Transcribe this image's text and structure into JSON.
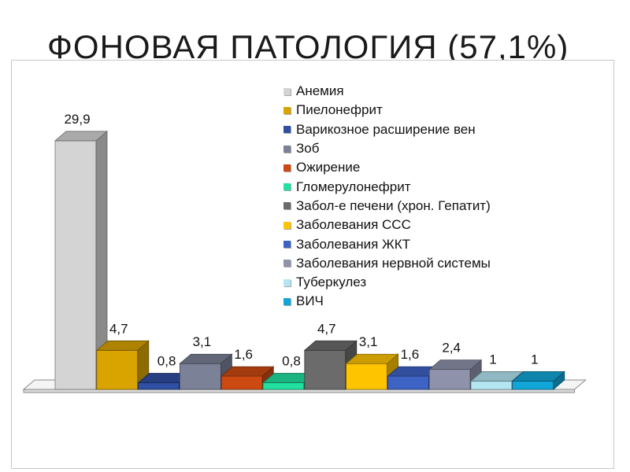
{
  "slide": {
    "title": "ФОНОВАЯ ПАТОЛОГИЯ (57,1%)"
  },
  "chart_data": {
    "type": "bar",
    "title": "",
    "xlabel": "",
    "ylabel": "",
    "ylim": [
      0,
      30
    ],
    "grid": false,
    "legend_position": "top-right",
    "series": [
      {
        "name": "Анемия",
        "value": 29.9,
        "label": "29,9",
        "color": "#d4d4d4"
      },
      {
        "name": "Пиелонефрит",
        "value": 4.7,
        "label": "4,7",
        "color": "#d9a400"
      },
      {
        "name": "Варикозное расширение вен",
        "value": 0.8,
        "label": "0,8",
        "color": "#2e4fa3"
      },
      {
        "name": "Зоб",
        "value": 3.1,
        "label": "3,1",
        "color": "#7b8196"
      },
      {
        "name": "Ожирение",
        "value": 1.6,
        "label": "1,6",
        "color": "#cc4a12"
      },
      {
        "name": "Гломерулонефрит",
        "value": 0.8,
        "label": "0,8",
        "color": "#22e0a0"
      },
      {
        "name": "Забол-е печени (хрон. Гепатит)",
        "value": 4.7,
        "label": "4,7",
        "color": "#6b6b6b"
      },
      {
        "name": "Заболевания ССС",
        "value": 3.1,
        "label": "3,1",
        "color": "#ffc400"
      },
      {
        "name": "Заболевания ЖКТ",
        "value": 1.6,
        "label": "1,6",
        "color": "#3d63c4"
      },
      {
        "name": "Заболевания нервной системы",
        "value": 2.4,
        "label": "2,4",
        "color": "#8e92aa"
      },
      {
        "name": "Туберкулез",
        "value": 1,
        "label": "1",
        "color": "#b4e6f2"
      },
      {
        "name": "ВИЧ",
        "value": 1,
        "label": "1",
        "color": "#11a6d8"
      }
    ]
  }
}
